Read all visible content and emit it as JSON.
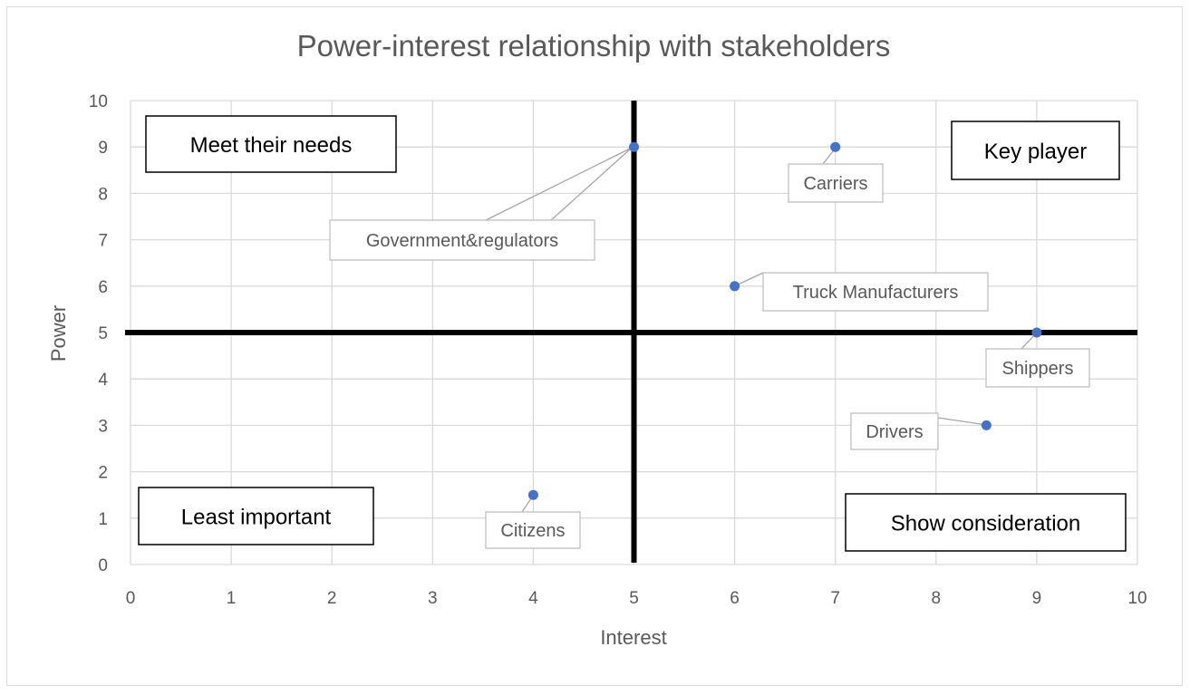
{
  "chart_data": {
    "type": "scatter",
    "title": "Power-interest relationship with stakeholders",
    "xlabel": "Interest",
    "ylabel": "Power",
    "xlim": [
      0,
      10
    ],
    "ylim": [
      0,
      10
    ],
    "xticks": [
      "0",
      "1",
      "2",
      "3",
      "4",
      "5",
      "6",
      "7",
      "8",
      "9",
      "10"
    ],
    "yticks": [
      "0",
      "1",
      "2",
      "3",
      "4",
      "5",
      "6",
      "7",
      "8",
      "9",
      "10"
    ],
    "grid": true,
    "point_color": "#4472c4",
    "divider_color": "#000000",
    "dividers": {
      "x": 5,
      "y": 5
    },
    "points": [
      {
        "label": "Government&regulators",
        "x": 5,
        "y": 9
      },
      {
        "label": "Carriers",
        "x": 7,
        "y": 9
      },
      {
        "label": "Truck Manufacturers",
        "x": 6,
        "y": 6
      },
      {
        "label": "Shippers",
        "x": 9,
        "y": 5
      },
      {
        "label": "Drivers",
        "x": 8.5,
        "y": 3
      },
      {
        "label": "Citizens",
        "x": 4,
        "y": 1.5
      }
    ],
    "quadrant_labels": [
      {
        "text": "Meet their needs",
        "quadrant": "top-left"
      },
      {
        "text": "Key player",
        "quadrant": "top-right"
      },
      {
        "text": "Least important",
        "quadrant": "bottom-left"
      },
      {
        "text": "Show consideration",
        "quadrant": "bottom-right"
      }
    ]
  }
}
